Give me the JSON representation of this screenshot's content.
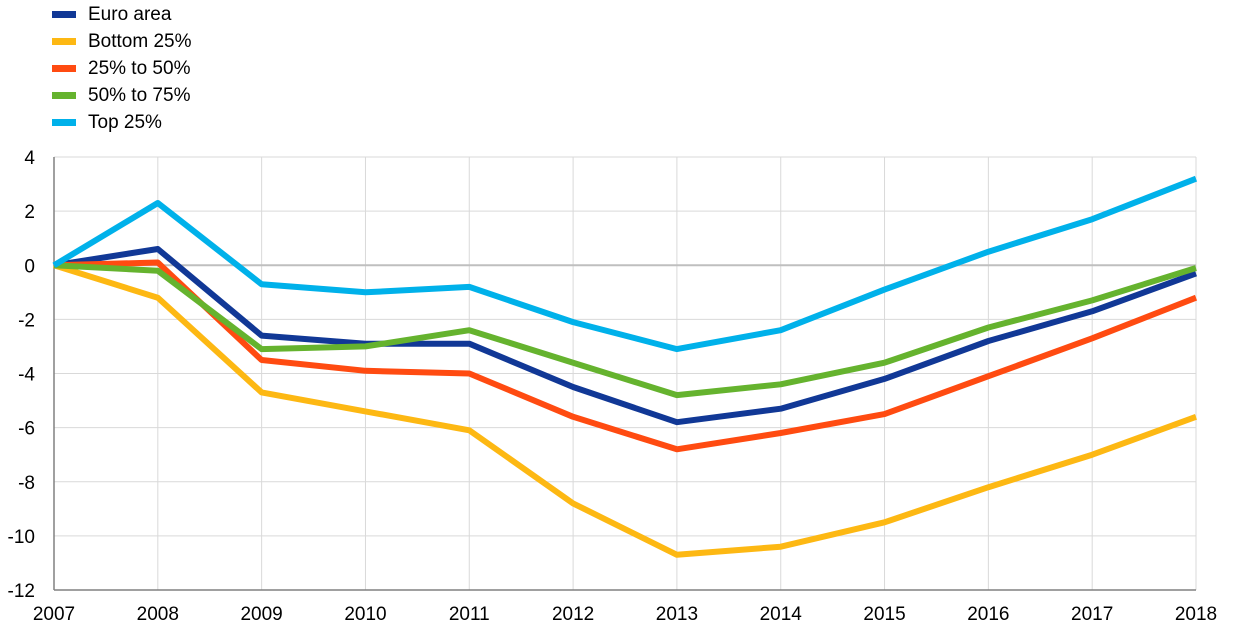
{
  "chart_data": {
    "type": "line",
    "title": "",
    "xlabel": "",
    "ylabel": "",
    "x": [
      "2007",
      "2008",
      "2009",
      "2010",
      "2011",
      "2012",
      "2013",
      "2014",
      "2015",
      "2016",
      "2017",
      "2018"
    ],
    "ylim": [
      -12,
      4
    ],
    "yticks": [
      4,
      2,
      0,
      -2,
      -4,
      -6,
      -8,
      -10,
      -12
    ],
    "grid": true,
    "legend_position": "top-left",
    "series": [
      {
        "name": "Euro area",
        "color": "#113896",
        "values": [
          0,
          0.6,
          -2.6,
          -2.9,
          -2.9,
          -4.5,
          -5.8,
          -5.3,
          -4.2,
          -2.8,
          -1.7,
          -0.3
        ]
      },
      {
        "name": "Bottom 25%",
        "color": "#FDB813",
        "values": [
          0,
          -1.2,
          -4.7,
          -5.4,
          -6.1,
          -8.8,
          -10.7,
          -10.4,
          -9.5,
          -8.2,
          -7.0,
          -5.6
        ]
      },
      {
        "name": "25% to 50%",
        "color": "#FF4B11",
        "values": [
          0,
          0.1,
          -3.5,
          -3.9,
          -4.0,
          -5.6,
          -6.8,
          -6.2,
          -5.5,
          -4.1,
          -2.7,
          -1.2
        ]
      },
      {
        "name": "50% to 75%",
        "color": "#65B32E",
        "values": [
          0,
          -0.2,
          -3.1,
          -3.0,
          -2.4,
          -3.6,
          -4.8,
          -4.4,
          -3.6,
          -2.3,
          -1.3,
          -0.1
        ]
      },
      {
        "name": "Top 25%",
        "color": "#00B1EA",
        "values": [
          0,
          2.3,
          -0.7,
          -1.0,
          -0.8,
          -2.1,
          -3.1,
          -2.4,
          -0.9,
          0.5,
          1.7,
          3.2
        ]
      }
    ]
  }
}
